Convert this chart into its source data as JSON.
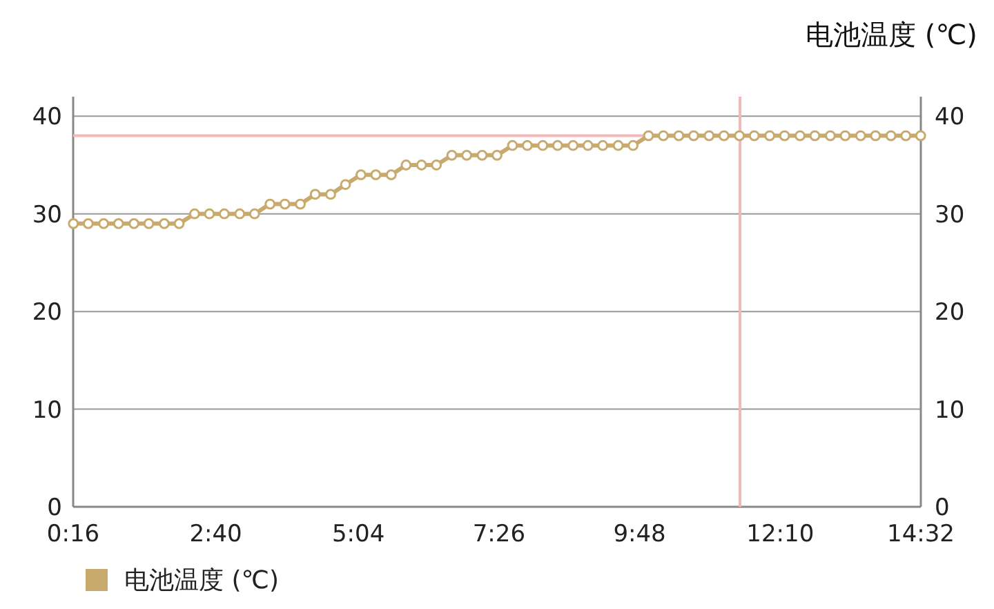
{
  "chart_data": {
    "type": "line",
    "title": "电池温度 (℃)",
    "x": [
      0.27,
      0.52,
      0.78,
      1.03,
      1.29,
      1.54,
      1.8,
      2.05,
      2.31,
      2.56,
      2.81,
      3.07,
      3.32,
      3.58,
      3.83,
      4.09,
      4.34,
      4.6,
      4.85,
      5.11,
      5.36,
      5.62,
      5.87,
      6.13,
      6.38,
      6.64,
      6.89,
      7.15,
      7.4,
      7.66,
      7.91,
      8.17,
      8.42,
      8.68,
      8.93,
      9.18,
      9.44,
      9.69,
      9.95,
      10.2,
      10.46,
      10.71,
      10.97,
      11.22,
      11.48,
      11.73,
      11.99,
      12.24,
      12.5,
      12.75,
      13.01,
      13.26,
      13.52,
      13.77,
      14.03,
      14.28,
      14.53
    ],
    "series": [
      {
        "name": "电池温度 (℃)",
        "color": "#c8aa6e",
        "values": [
          29,
          29,
          29,
          29,
          29,
          29,
          29,
          29,
          30,
          30,
          30,
          30,
          30,
          31,
          31,
          31,
          32,
          32,
          33,
          34,
          34,
          34,
          35,
          35,
          35,
          36,
          36,
          36,
          36,
          37,
          37,
          37,
          37,
          37,
          37,
          37,
          37,
          37,
          38,
          38,
          38,
          38,
          38,
          38,
          38,
          38,
          38,
          38,
          38,
          38,
          38,
          38,
          38,
          38,
          38,
          38,
          38
        ]
      }
    ],
    "xlim": [
      0.2667,
      14.5333
    ],
    "xticks": [
      {
        "value": 0.2667,
        "label": "0:16"
      },
      {
        "value": 2.6667,
        "label": "2:40"
      },
      {
        "value": 5.0667,
        "label": "5:04"
      },
      {
        "value": 7.4333,
        "label": "7:26"
      },
      {
        "value": 9.8,
        "label": "9:48"
      },
      {
        "value": 12.1667,
        "label": "12:10"
      },
      {
        "value": 14.5333,
        "label": "14:32"
      }
    ],
    "ylim": [
      0,
      42
    ],
    "yticks": [
      0,
      10,
      20,
      30,
      40
    ],
    "y2lim": [
      0,
      42
    ],
    "y2ticks": [
      0,
      10,
      20,
      30,
      40
    ],
    "ref_lines": [
      {
        "axis": "y",
        "value": 38,
        "color": "#f4b8b8"
      },
      {
        "axis": "x",
        "value": 11.49,
        "color": "#f4b8b8"
      }
    ],
    "grid": "y",
    "legend": "bottom left",
    "marker": "circle",
    "line_style": "solid"
  }
}
